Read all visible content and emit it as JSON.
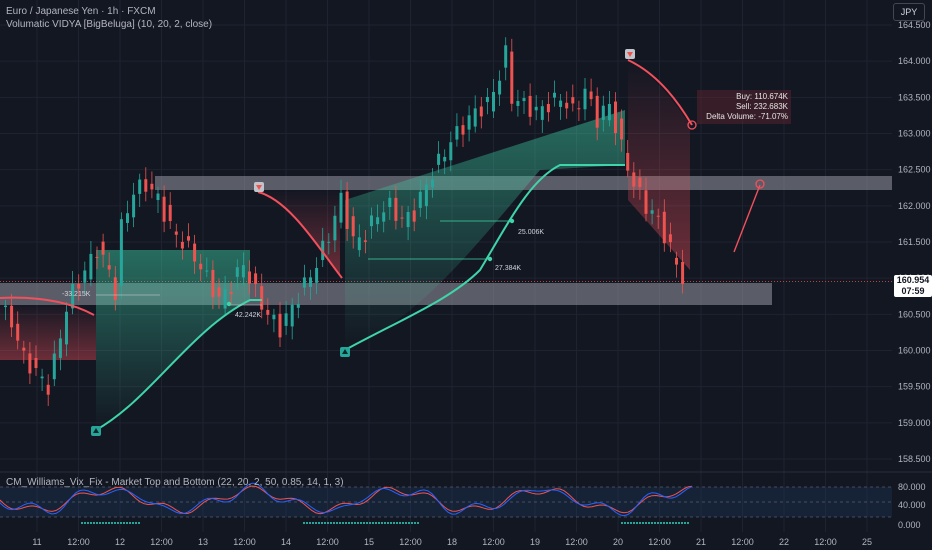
{
  "symbol": {
    "title": "Euro / Japanese Yen · 1h · FXCM",
    "indicator": "Volumatic VIDYA [BigBeluga] (10, 20, 2, close)"
  },
  "currency_button": "JPY",
  "price_axis": {
    "ticks": [
      "164.500",
      "164.000",
      "163.500",
      "163.000",
      "162.500",
      "162.000",
      "161.500",
      "161.000",
      "160.500",
      "160.000",
      "159.500",
      "159.000",
      "158.500"
    ],
    "current_price": "160.954",
    "countdown": "07:59"
  },
  "time_axis": {
    "ticks": [
      "11",
      "12:00",
      "12",
      "12:00",
      "13",
      "12:00",
      "14",
      "12:00",
      "15",
      "12:00",
      "18",
      "12:00",
      "19",
      "12:00",
      "20",
      "12:00",
      "21",
      "12:00",
      "22",
      "12:00",
      "25"
    ]
  },
  "volume_labels": {
    "a": "-33.215K",
    "b": "42.242K",
    "c": "27.384K",
    "d": "25.006K"
  },
  "tooltip": {
    "buy": "Buy: 110.674K",
    "sell": "Sell: 232.683K",
    "delta": "Delta Volume: -71.07%"
  },
  "oscillator": {
    "title": "CM_Williams_Vix_Fix - Market Top and Bottom (22, 20, 2, 50, 0.85, 14, 1, 3)",
    "ticks": [
      "80.000",
      "40.000",
      "0.000"
    ]
  },
  "colors": {
    "background": "#131722",
    "bull": "#26a69a",
    "bear": "#ef5350",
    "trend_bull": "#3fd4a9",
    "trend_bear": "#f2505c",
    "zone": "#9598a1"
  },
  "icons": {
    "signal_up": "triangle-up-icon",
    "signal_down": "triangle-down-icon",
    "target": "crosshair-icon"
  },
  "chart_data": {
    "type": "candlestick",
    "title": "Euro / Japanese Yen · 1h · FXCM",
    "price_range": [
      158.4,
      164.8
    ],
    "close_path": [
      [
        0,
        160.6
      ],
      [
        2,
        160.4
      ],
      [
        4,
        159.9
      ],
      [
        6,
        159.7
      ],
      [
        8,
        159.5
      ],
      [
        10,
        160.2
      ],
      [
        11,
        160.6
      ],
      [
        12,
        160.8
      ],
      [
        14,
        161.1
      ],
      [
        16,
        161.4
      ],
      [
        18,
        161.1
      ],
      [
        19,
        160.8
      ],
      [
        20,
        161.7
      ],
      [
        22,
        162.2
      ],
      [
        24,
        162.3
      ],
      [
        26,
        162.1
      ],
      [
        28,
        161.7
      ],
      [
        30,
        161.5
      ],
      [
        32,
        161.3
      ],
      [
        34,
        161.0
      ],
      [
        36,
        160.7
      ],
      [
        38,
        160.9
      ],
      [
        40,
        161.2
      ],
      [
        42,
        160.8
      ],
      [
        44,
        160.5
      ],
      [
        46,
        160.3
      ],
      [
        48,
        160.6
      ],
      [
        50,
        160.9
      ],
      [
        52,
        161.2
      ],
      [
        54,
        161.6
      ],
      [
        56,
        162.1
      ],
      [
        58,
        161.5
      ],
      [
        60,
        161.6
      ],
      [
        62,
        161.9
      ],
      [
        64,
        162.0
      ],
      [
        66,
        161.8
      ],
      [
        68,
        161.9
      ],
      [
        70,
        162.3
      ],
      [
        72,
        162.6
      ],
      [
        74,
        162.9
      ],
      [
        76,
        163.1
      ],
      [
        78,
        163.3
      ],
      [
        80,
        163.4
      ],
      [
        82,
        163.8
      ],
      [
        83,
        164.1
      ],
      [
        84,
        163.5
      ],
      [
        86,
        163.4
      ],
      [
        88,
        163.3
      ],
      [
        90,
        163.4
      ],
      [
        92,
        163.5
      ],
      [
        94,
        163.3
      ],
      [
        96,
        163.6
      ],
      [
        98,
        163.2
      ],
      [
        100,
        163.4
      ],
      [
        102,
        162.8
      ],
      [
        104,
        162.3
      ],
      [
        106,
        162.0
      ],
      [
        108,
        161.8
      ],
      [
        110,
        161.4
      ],
      [
        112,
        161.0
      ]
    ]
  }
}
